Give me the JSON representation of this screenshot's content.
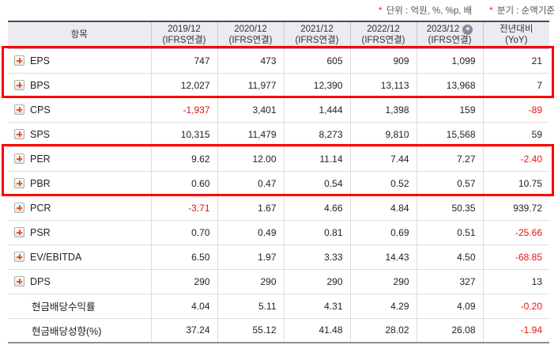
{
  "notes": {
    "unit_label": "단위 : 억원, %, %p, 배",
    "basis_label": "분기 : 순액기준",
    "asterisk": "*"
  },
  "table": {
    "item_header": "항목",
    "columns": [
      {
        "period": "2019/12",
        "sub": "(IFRS연결)",
        "has_plus": false
      },
      {
        "period": "2020/12",
        "sub": "(IFRS연결)",
        "has_plus": false
      },
      {
        "period": "2021/12",
        "sub": "(IFRS연결)",
        "has_plus": false
      },
      {
        "period": "2022/12",
        "sub": "(IFRS연결)",
        "has_plus": false
      },
      {
        "period": "2023/12",
        "sub": "(IFRS연결)",
        "has_plus": true
      },
      {
        "period": "전년대비",
        "sub": "(YoY)",
        "has_plus": false
      }
    ],
    "rows": [
      {
        "label": "EPS",
        "expandable": true,
        "values": [
          "747",
          "473",
          "605",
          "909",
          "1,099",
          "21"
        ]
      },
      {
        "label": "BPS",
        "expandable": true,
        "values": [
          "12,027",
          "11,977",
          "12,390",
          "13,113",
          "13,968",
          "7"
        ]
      },
      {
        "label": "CPS",
        "expandable": true,
        "values": [
          "-1,937",
          "3,401",
          "1,444",
          "1,398",
          "159",
          "-89"
        ]
      },
      {
        "label": "SPS",
        "expandable": true,
        "values": [
          "10,315",
          "11,479",
          "8,273",
          "9,810",
          "15,568",
          "59"
        ]
      },
      {
        "label": "PER",
        "expandable": true,
        "values": [
          "9.62",
          "12.00",
          "11.14",
          "7.44",
          "7.27",
          "-2.40"
        ]
      },
      {
        "label": "PBR",
        "expandable": true,
        "values": [
          "0.60",
          "0.47",
          "0.54",
          "0.52",
          "0.57",
          "10.75"
        ]
      },
      {
        "label": "PCR",
        "expandable": true,
        "values": [
          "-3.71",
          "1.67",
          "4.66",
          "4.84",
          "50.35",
          "939.72"
        ]
      },
      {
        "label": "PSR",
        "expandable": true,
        "values": [
          "0.70",
          "0.49",
          "0.81",
          "0.69",
          "0.51",
          "-25.66"
        ]
      },
      {
        "label": "EV/EBITDA",
        "expandable": true,
        "values": [
          "6.50",
          "1.97",
          "3.33",
          "14.43",
          "4.50",
          "-68.85"
        ]
      },
      {
        "label": "DPS",
        "expandable": true,
        "values": [
          "290",
          "290",
          "290",
          "290",
          "327",
          "13"
        ]
      },
      {
        "label": "현금배당수익률",
        "expandable": false,
        "values": [
          "4.04",
          "5.11",
          "4.31",
          "4.29",
          "4.09",
          "-0.20"
        ]
      },
      {
        "label": "현금배당성향(%)",
        "expandable": false,
        "values": [
          "37.24",
          "55.12",
          "41.48",
          "28.02",
          "26.08",
          "-1.94"
        ]
      }
    ],
    "highlight_groups": [
      [
        0,
        1
      ],
      [
        4,
        5
      ]
    ]
  },
  "colors": {
    "highlight_border": "#ff0000",
    "negative_value": "#e61212",
    "expand_plus": "#f0521c",
    "header_background": "#ebebf1",
    "note_asterisk": "#e1251b"
  }
}
